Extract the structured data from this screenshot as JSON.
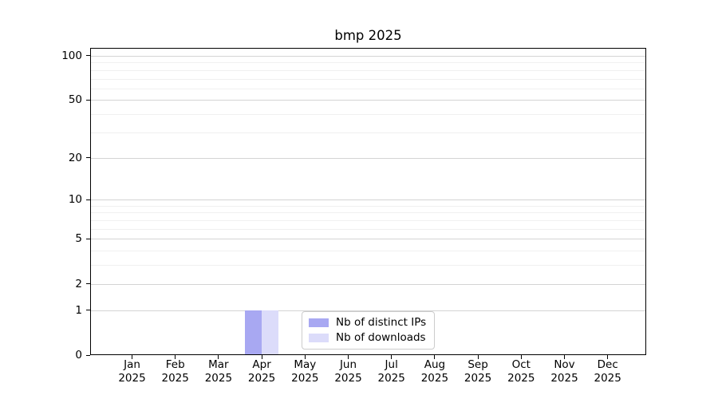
{
  "chart_data": {
    "type": "bar",
    "title": "bmp 2025",
    "categories": [
      "Jan",
      "Feb",
      "Mar",
      "Apr",
      "May",
      "Jun",
      "Jul",
      "Aug",
      "Sep",
      "Oct",
      "Nov",
      "Dec"
    ],
    "year": "2025",
    "series": [
      {
        "name": "Nb of distinct IPs",
        "color": "#a8a8f2",
        "values": [
          0,
          0,
          0,
          1,
          0,
          0,
          0,
          0,
          0,
          0,
          0,
          0
        ]
      },
      {
        "name": "Nb of downloads",
        "color": "#dcdcfa",
        "values": [
          0,
          0,
          0,
          1,
          0,
          0,
          0,
          0,
          0,
          0,
          0,
          0
        ]
      }
    ],
    "yscale": "log1p",
    "yticks": [
      0,
      1,
      2,
      5,
      10,
      20,
      50,
      100
    ],
    "minor_yticks": [
      3,
      4,
      6,
      7,
      8,
      9,
      30,
      40,
      60,
      70,
      80,
      90
    ],
    "ylim": [
      0,
      113
    ],
    "grid": "horizontal",
    "legend_position": "lower center",
    "colors": {
      "major_grid": "#d4d4d4",
      "minor_grid": "#f0f0f0",
      "axis": "#000000",
      "legend_border": "#cccccc"
    }
  }
}
